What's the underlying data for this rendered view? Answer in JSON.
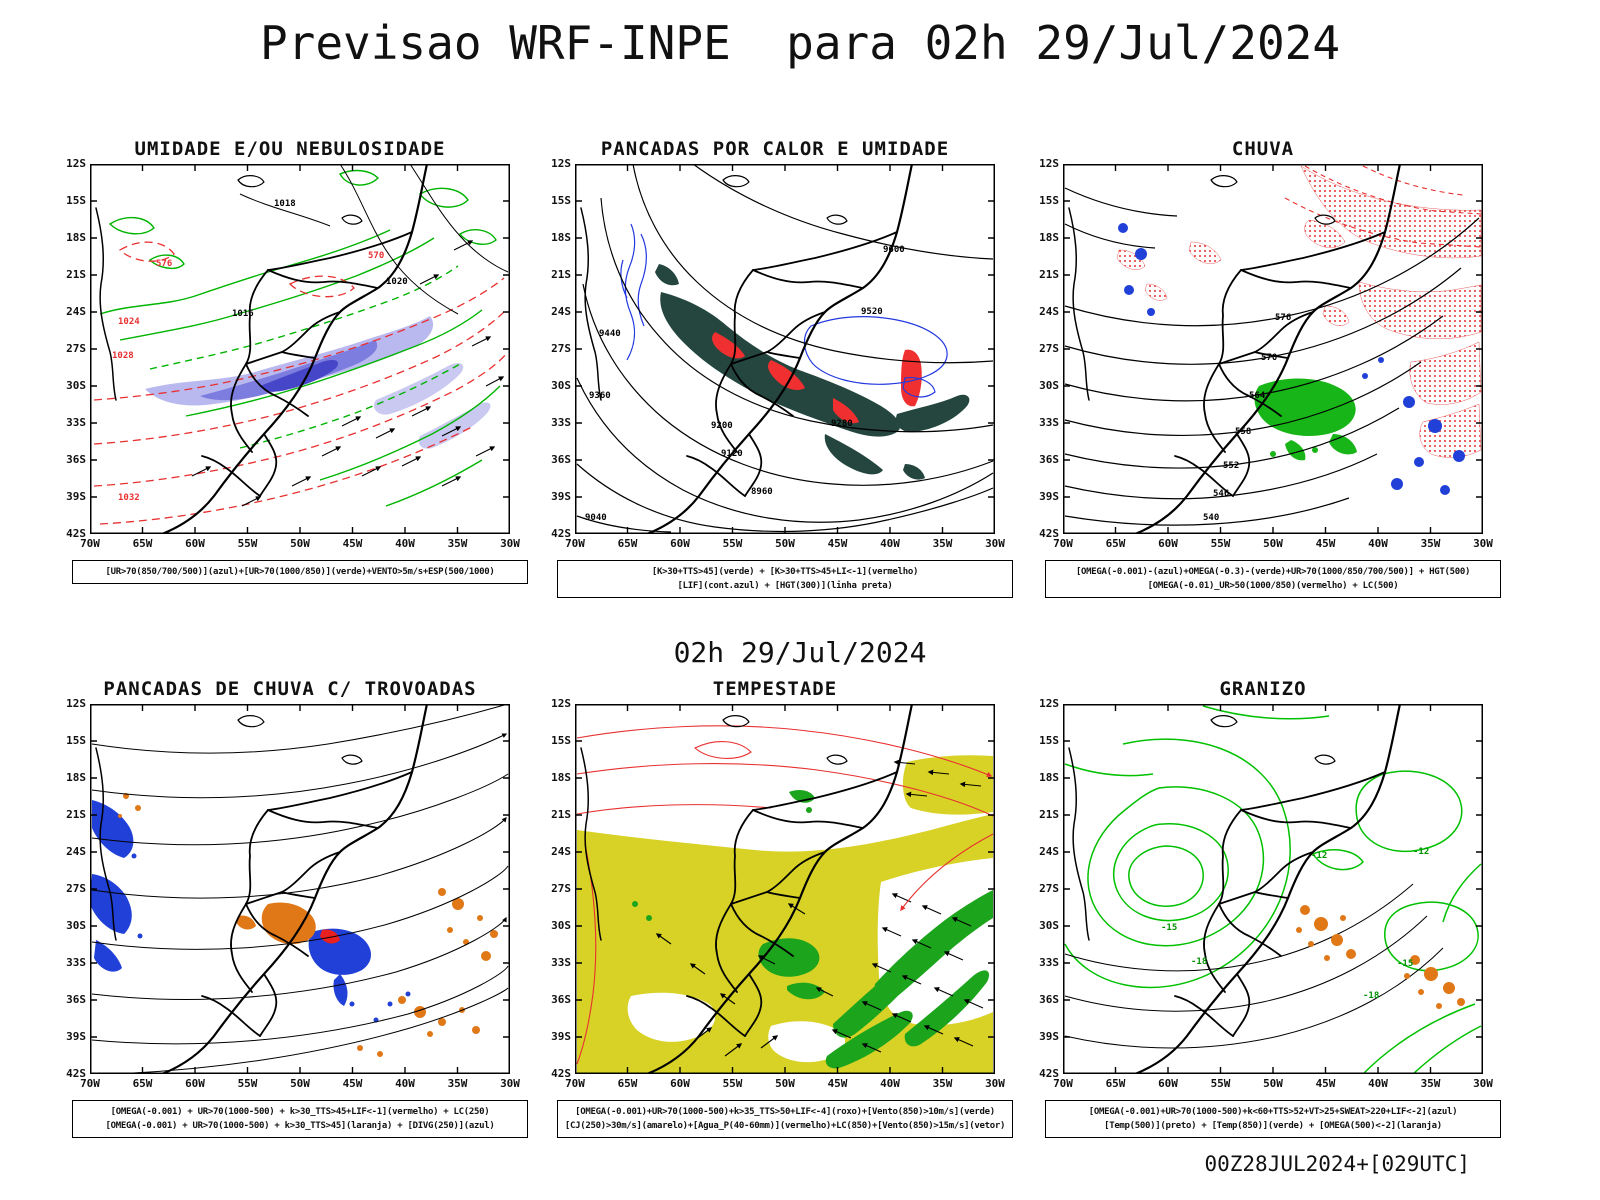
{
  "page": {
    "title": "Previsao WRF-INPE  para 02h 29/Jul/2024",
    "subtitle": "02h 29/Jul/2024",
    "footer": "00Z28JUL2024+[029UTC]"
  },
  "axes": {
    "y": [
      "12S",
      "15S",
      "18S",
      "21S",
      "24S",
      "27S",
      "30S",
      "33S",
      "36S",
      "39S",
      "42S"
    ],
    "x": [
      "70W",
      "65W",
      "60W",
      "55W",
      "50W",
      "45W",
      "40W",
      "35W",
      "30W"
    ]
  },
  "panels": [
    {
      "title": "UMIDADE E/OU NEBULOSIDADE",
      "caption_lines": [
        "[UR>70(850/700/500)](azul)+[UR>70(1000/850)](verde)+VENTO>5m/s+ESP(500/1000)"
      ],
      "contour_labels": [
        "1016",
        "1018",
        "1020",
        "1024",
        "1028",
        "1032",
        "570",
        "576"
      ]
    },
    {
      "title": "PANCADAS POR CALOR E UMIDADE",
      "caption_lines": [
        "[K>30+TTS>45](verde) + [K>30+TTS>45+LI<-1](vermelho)",
        "[LIF](cont.azul) + [HGT(300)](linha preta)"
      ],
      "contour_labels": [
        "9600",
        "9520",
        "9440",
        "9360",
        "9280",
        "9200",
        "9120",
        "9040",
        "8960"
      ]
    },
    {
      "title": "CHUVA",
      "caption_lines": [
        "[OMEGA(-0.001)-(azul)+OMEGA(-0.3)-(verde)+UR>70(1000/850/700/500)] + HGT(500)",
        "[OMEGA(-0.01)_UR>50(1000/850)(vermelho) + LC(500)"
      ],
      "contour_labels": [
        "570",
        "576",
        "564",
        "558",
        "552",
        "546",
        "540"
      ]
    },
    {
      "title": "PANCADAS DE CHUVA C/ TROVOADAS",
      "caption_lines": [
        "[OMEGA(-0.001) + UR>70(1000-500) + k>30_TTS>45+LIF<-1](vermelho) + LC(250)",
        "[OMEGA(-0.001) + UR>70(1000-500) + k>30_TTS>45](laranja) + [DIVG(250)](azul)"
      ],
      "contour_labels": []
    },
    {
      "title": "TEMPESTADE",
      "caption_lines": [
        "[OMEGA(-0.001)+UR>70(1000-500)+k>35_TTS>50+LIF<-4](roxo)+[Vento(850)>10m/s](verde)",
        "[CJ(250)>30m/s](amarelo)+[Agua_P(40-60mm)](vermelho)+LC(850)+[Vento(850)>15m/s](vetor)"
      ],
      "contour_labels": []
    },
    {
      "title": "GRANIZO",
      "caption_lines": [
        "[OMEGA(-0.001)+UR>70(1000-500)+k<60+TTS>52+VT>25+SWEAT>220+LIF<-2](azul)",
        "[Temp(500)](preto) + [Temp(850)](verde) + [OMEGA(500)<-2](laranja)"
      ],
      "contour_labels": [
        "-12",
        "-15",
        "-18"
      ]
    }
  ],
  "colors": {
    "humidity_blue": "#8888e0",
    "green_contour": "#00b400",
    "red_contour": "#e83030",
    "dark_teal_fill": "#24463f",
    "patch_blue": "#2040d8",
    "patch_orange": "#e07818",
    "storm_yellow": "#d8d226",
    "storm_green": "#1ca41c"
  }
}
